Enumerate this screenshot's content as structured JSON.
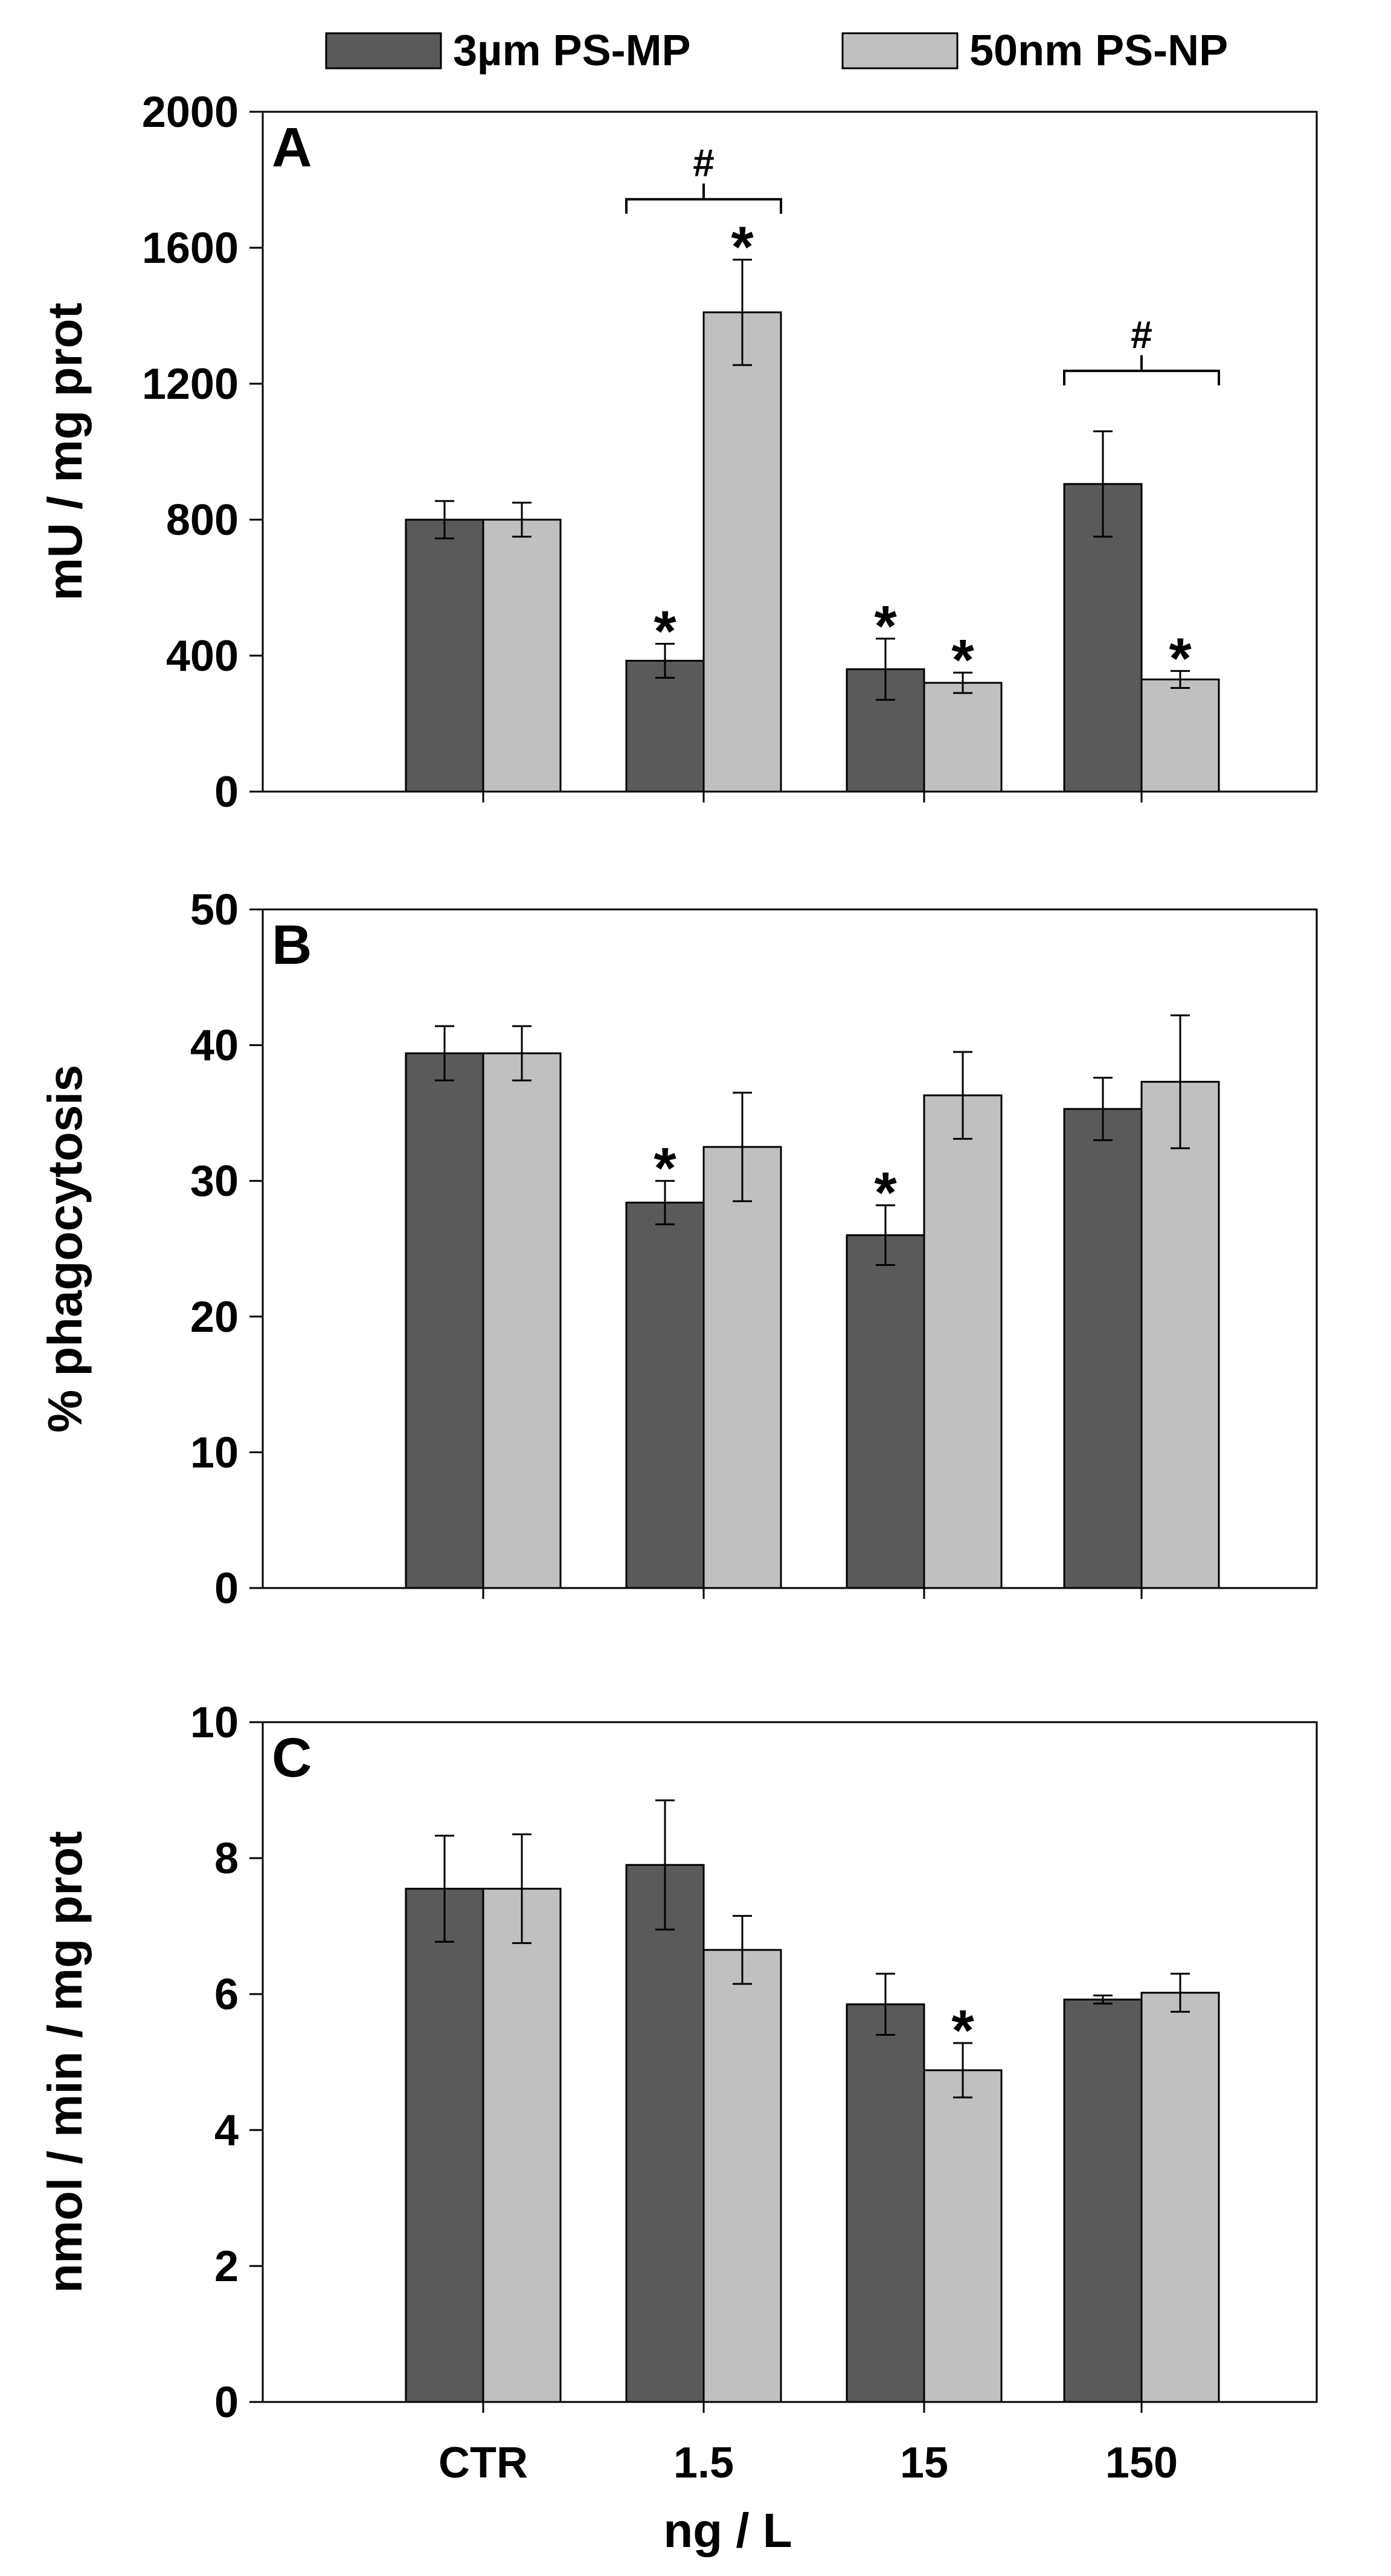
{
  "legend": [
    {
      "name": "3µm PS-MP",
      "color": "#5a5a5a"
    },
    {
      "name": "50nm PS-NP",
      "color": "#c0c0c0"
    }
  ],
  "xlabel": "ng / L",
  "chart_data": [
    {
      "type": "bar",
      "panel": "A",
      "ylabel": "mU / mg prot",
      "ylim": [
        0,
        2000
      ],
      "yticks": [
        0,
        400,
        800,
        1200,
        1600,
        2000
      ],
      "categories": [
        "CTR",
        "1.5",
        "15",
        "150"
      ],
      "series": [
        {
          "name": "3µm PS-MP",
          "values": [
            800,
            385,
            360,
            905
          ],
          "errors": [
            55,
            50,
            90,
            155
          ],
          "significant": [
            false,
            true,
            true,
            false
          ]
        },
        {
          "name": "50nm PS-NP",
          "values": [
            800,
            1410,
            320,
            330
          ],
          "errors": [
            50,
            155,
            30,
            25
          ],
          "significant": [
            false,
            true,
            true,
            true
          ]
        }
      ],
      "group_annotations": [
        {
          "category": "1.5",
          "label": "#"
        },
        {
          "category": "150",
          "label": "#"
        }
      ]
    },
    {
      "type": "bar",
      "panel": "B",
      "ylabel": "% phagocytosis",
      "ylim": [
        0,
        50
      ],
      "yticks": [
        0,
        10,
        20,
        30,
        40,
        50
      ],
      "categories": [
        "CTR",
        "1.5",
        "15",
        "150"
      ],
      "series": [
        {
          "name": "3µm PS-MP",
          "values": [
            39.4,
            28.4,
            26.0,
            35.3
          ],
          "errors": [
            2.0,
            1.6,
            2.2,
            2.3
          ],
          "significant": [
            false,
            true,
            true,
            false
          ]
        },
        {
          "name": "50nm PS-NP",
          "values": [
            39.4,
            32.5,
            36.3,
            37.3
          ],
          "errors": [
            2.0,
            4.0,
            3.2,
            4.9
          ],
          "significant": [
            false,
            false,
            false,
            false
          ]
        }
      ],
      "group_annotations": []
    },
    {
      "type": "bar",
      "panel": "C",
      "ylabel": "nmol / min / mg prot",
      "ylim": [
        0,
        10
      ],
      "yticks": [
        0,
        2,
        4,
        6,
        8,
        10
      ],
      "categories": [
        "CTR",
        "1.5",
        "15",
        "150"
      ],
      "series": [
        {
          "name": "3µm PS-MP",
          "values": [
            7.55,
            7.9,
            5.85,
            5.92
          ],
          "errors": [
            0.78,
            0.95,
            0.45,
            0.06
          ],
          "significant": [
            false,
            false,
            false,
            false
          ]
        },
        {
          "name": "50nm PS-NP",
          "values": [
            7.55,
            6.65,
            4.88,
            6.02
          ],
          "errors": [
            0.8,
            0.5,
            0.4,
            0.28
          ],
          "significant": [
            false,
            false,
            true,
            false
          ]
        }
      ],
      "group_annotations": []
    }
  ]
}
